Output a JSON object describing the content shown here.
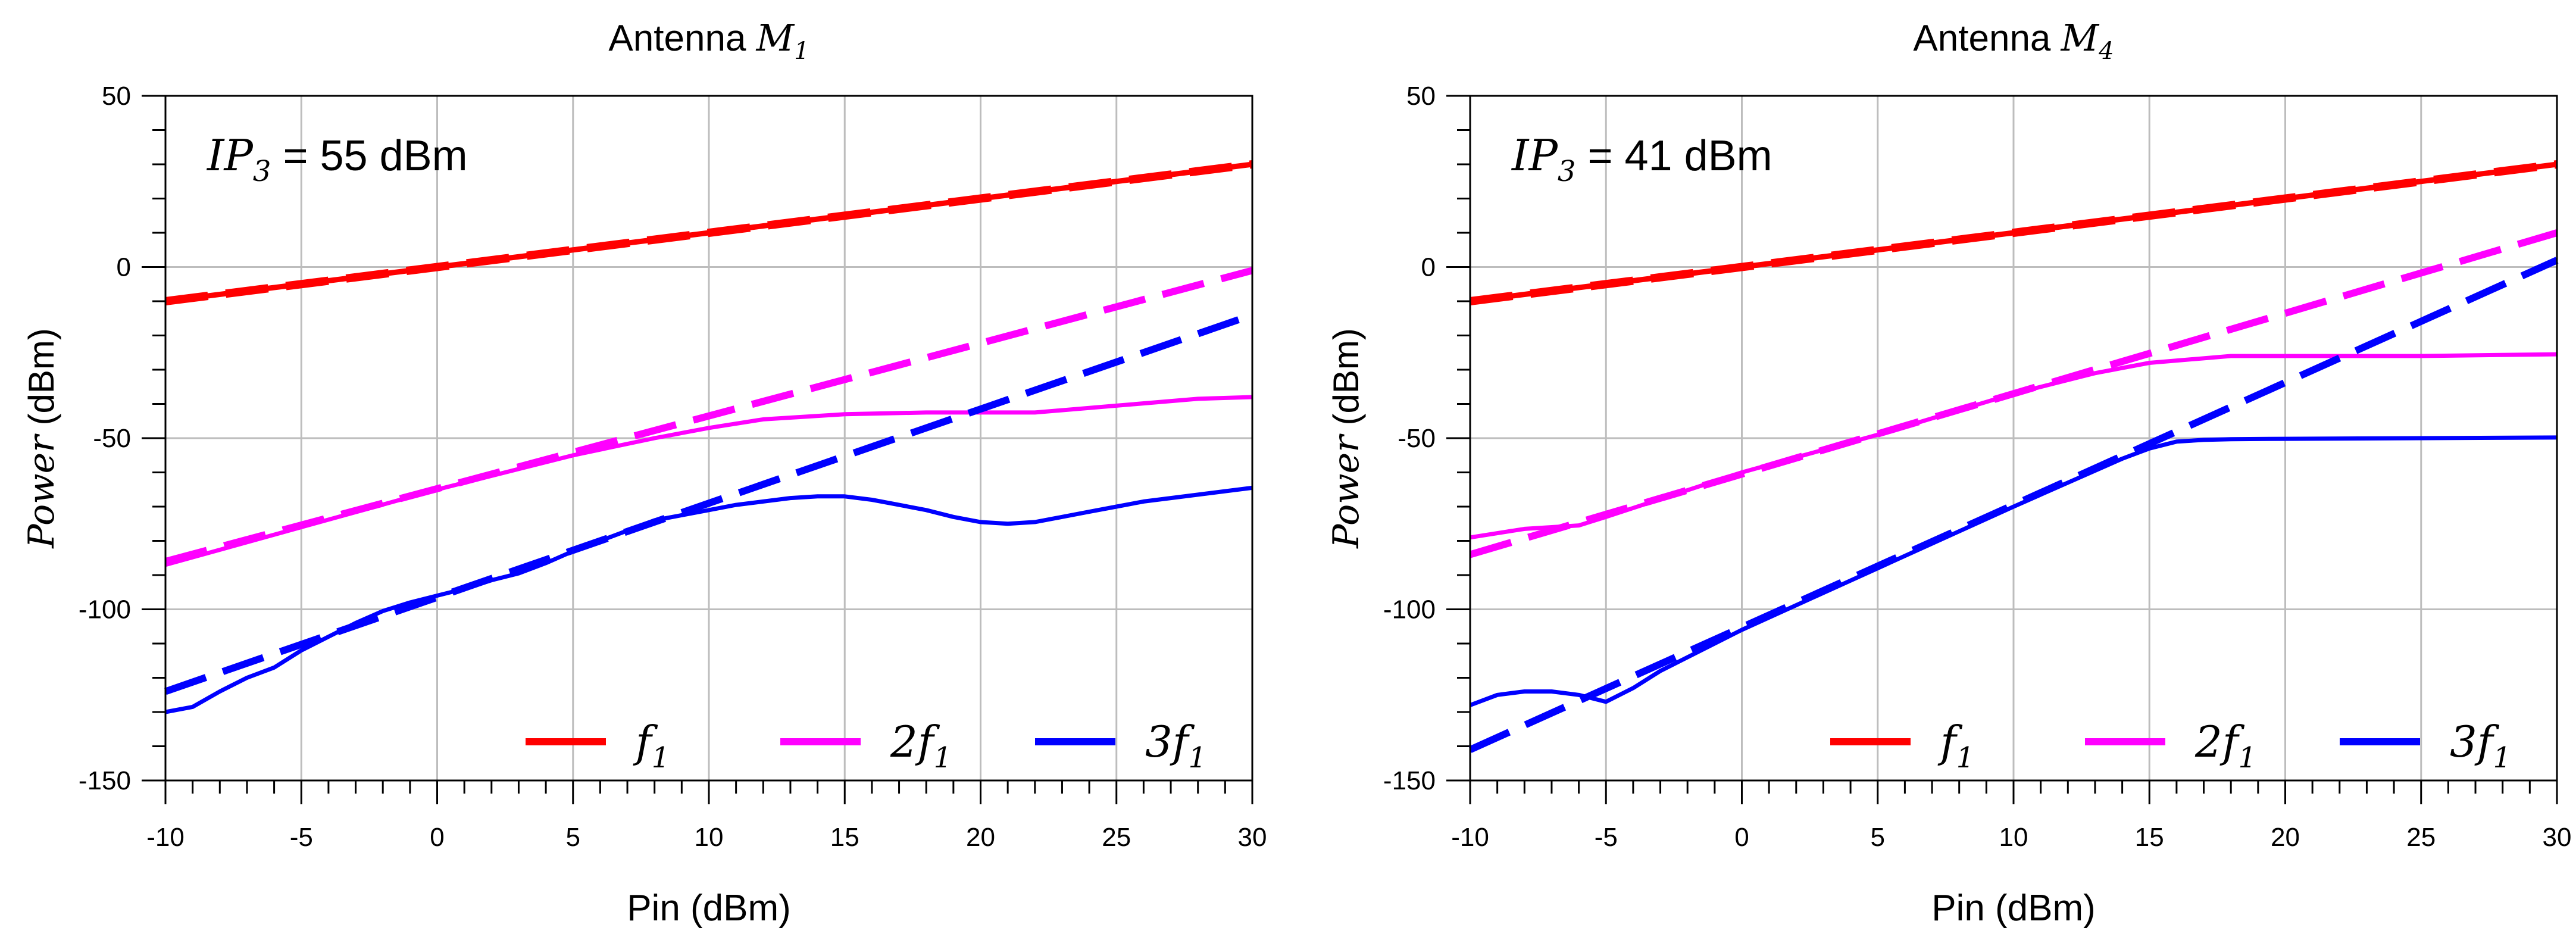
{
  "chart_data": [
    {
      "type": "line",
      "title": "Antenna ",
      "title_symbol": "M",
      "title_subscript": "1",
      "annotation": {
        "prefix": "IP",
        "subscript": "3",
        "value_text": " = 55 dBm"
      },
      "xlabel": "Pin (dBm)",
      "ylabel": "Power",
      "ylabel_unit": " (dBm)",
      "xlim": [
        -10,
        30
      ],
      "ylim": [
        -150,
        50
      ],
      "xticks": [
        -10,
        -5,
        0,
        5,
        10,
        15,
        20,
        25,
        30
      ],
      "yticks": [
        -150,
        -100,
        -50,
        0,
        50
      ],
      "grid": true,
      "legend_position": "bottom-right",
      "series": [
        {
          "name": "f1",
          "label_prefix": "",
          "label_symbol": "f",
          "label_subscript": "1",
          "color": "#ff0000",
          "style": "solid",
          "x": [
            -10,
            30
          ],
          "y": [
            -10,
            30
          ]
        },
        {
          "name": "f1 linear",
          "color": "#ff0000",
          "style": "dashed",
          "x": [
            -10,
            30
          ],
          "y": [
            -10,
            30
          ]
        },
        {
          "name": "2f1",
          "label_prefix": "2",
          "label_symbol": "f",
          "label_subscript": "1",
          "color": "#ff00ff",
          "style": "solid",
          "x": [
            -10,
            -5,
            0,
            5,
            8,
            10,
            12,
            15,
            18,
            20,
            22,
            25,
            28,
            30
          ],
          "y": [
            -87,
            -76,
            -65,
            -55,
            -50,
            -47,
            -44.5,
            -43,
            -42.5,
            -42.5,
            -42.5,
            -40.5,
            -38.5,
            -38
          ]
        },
        {
          "name": "2f1 linear",
          "color": "#ff00ff",
          "style": "dashed",
          "x": [
            -10,
            30
          ],
          "y": [
            -86,
            -1
          ]
        },
        {
          "name": "3f1",
          "label_prefix": "3",
          "label_symbol": "f",
          "label_subscript": "1",
          "color": "#0000ff",
          "style": "solid",
          "x": [
            -10,
            -9,
            -8,
            -7,
            -6,
            -5,
            -4,
            -3,
            -2,
            -1,
            0,
            1,
            2,
            3,
            4,
            5,
            6,
            7,
            8,
            9,
            10,
            11,
            12,
            13,
            14,
            15,
            16,
            17,
            18,
            19,
            20,
            21,
            22,
            23,
            24,
            25,
            26,
            27,
            28,
            29,
            30
          ],
          "y": [
            -130,
            -128.5,
            -124,
            -120,
            -117,
            -112,
            -108,
            -104,
            -100.5,
            -98,
            -96,
            -94,
            -91.5,
            -89.5,
            -86.5,
            -83,
            -80,
            -77,
            -74,
            -72.5,
            -71,
            -69.5,
            -68.5,
            -67.5,
            -67,
            -67,
            -68,
            -69.5,
            -71,
            -73,
            -74.5,
            -75,
            -74.5,
            -73,
            -71.5,
            -70,
            -68.5,
            -67.5,
            -66.5,
            -65.5,
            -64.5
          ]
        },
        {
          "name": "3f1 linear",
          "color": "#0000ff",
          "style": "dashed",
          "x": [
            -10,
            30
          ],
          "y": [
            -124,
            -14
          ]
        }
      ]
    },
    {
      "type": "line",
      "title": "Antenna ",
      "title_symbol": "M",
      "title_subscript": "4",
      "annotation": {
        "prefix": "IP",
        "subscript": "3",
        "value_text": " = 41 dBm"
      },
      "xlabel": "Pin (dBm)",
      "ylabel": "Power",
      "ylabel_unit": " (dBm)",
      "xlim": [
        -10,
        30
      ],
      "ylim": [
        -150,
        50
      ],
      "xticks": [
        -10,
        -5,
        0,
        5,
        10,
        15,
        20,
        25,
        30
      ],
      "yticks": [
        -150,
        -100,
        -50,
        0,
        50
      ],
      "grid": true,
      "legend_position": "bottom-right",
      "series": [
        {
          "name": "f1",
          "label_prefix": "",
          "label_symbol": "f",
          "label_subscript": "1",
          "color": "#ff0000",
          "style": "solid",
          "x": [
            -10,
            30
          ],
          "y": [
            -10,
            30
          ]
        },
        {
          "name": "f1 linear",
          "color": "#ff0000",
          "style": "dashed",
          "x": [
            -10,
            30
          ],
          "y": [
            -10,
            30
          ]
        },
        {
          "name": "2f1",
          "label_prefix": "2",
          "label_symbol": "f",
          "label_subscript": "1",
          "color": "#ff00ff",
          "style": "solid",
          "x": [
            -10,
            -8,
            -6,
            -5,
            0,
            5,
            10,
            13,
            15,
            18,
            20,
            25,
            30
          ],
          "y": [
            -79,
            -76.5,
            -75.5,
            -73,
            -60,
            -49,
            -37,
            -31,
            -28,
            -26,
            -26,
            -26,
            -25.5
          ]
        },
        {
          "name": "2f1 linear",
          "color": "#ff00ff",
          "style": "dashed",
          "x": [
            -10,
            30
          ],
          "y": [
            -84,
            10
          ]
        },
        {
          "name": "3f1",
          "label_prefix": "3",
          "label_symbol": "f",
          "label_subscript": "1",
          "color": "#0000ff",
          "style": "solid",
          "x": [
            -10,
            -9,
            -8,
            -7,
            -6,
            -5,
            -4,
            -3,
            -2,
            -1,
            0,
            5,
            10,
            14,
            15,
            16,
            17,
            18,
            20,
            25,
            30
          ],
          "y": [
            -128,
            -125,
            -124,
            -124,
            -125,
            -127,
            -123,
            -118,
            -114,
            -110,
            -106,
            -88,
            -70,
            -56,
            -53,
            -51,
            -50.5,
            -50.3,
            -50.2,
            -50,
            -49.8
          ]
        },
        {
          "name": "3f1 linear",
          "color": "#0000ff",
          "style": "dashed",
          "x": [
            -10,
            30
          ],
          "y": [
            -141,
            2
          ]
        }
      ]
    }
  ]
}
